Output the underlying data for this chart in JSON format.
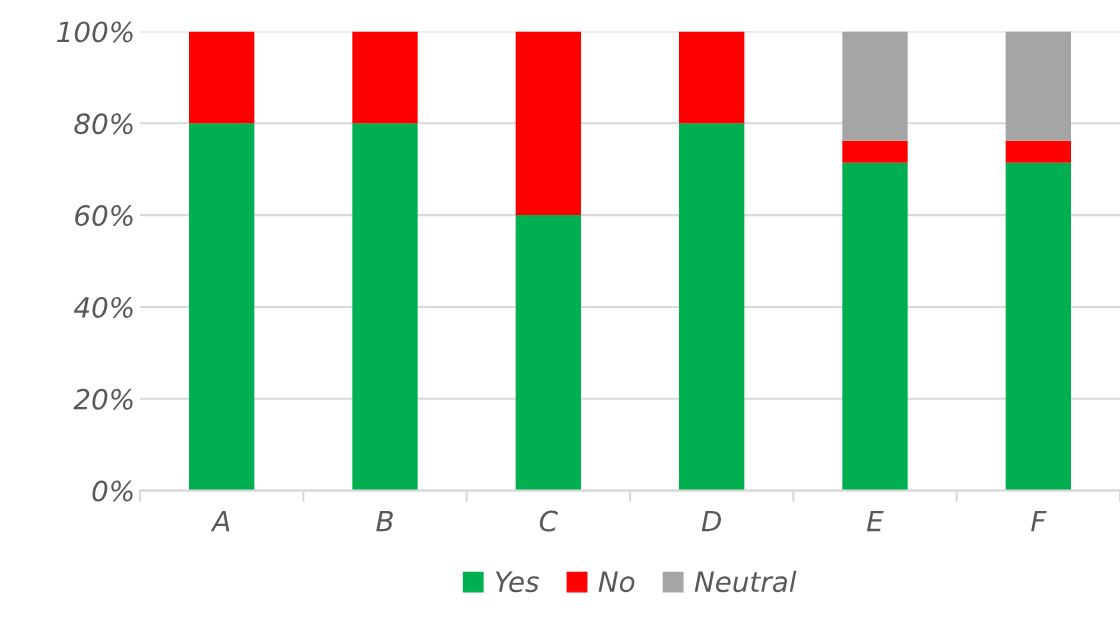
{
  "chart_data": {
    "type": "bar",
    "stacked": true,
    "categories": [
      "A",
      "B",
      "C",
      "D",
      "E",
      "F"
    ],
    "series": [
      {
        "name": "Yes",
        "color": "#00b050",
        "values": [
          80,
          80,
          60,
          80,
          71.4,
          71.4
        ]
      },
      {
        "name": "No",
        "color": "#ff0000",
        "values": [
          20,
          20,
          40,
          20,
          4.8,
          4.8
        ]
      },
      {
        "name": "Neutral",
        "color": "#a5a5a5",
        "values": [
          null,
          null,
          null,
          null,
          23.8,
          23.8
        ]
      }
    ],
    "ylim": [
      0,
      100
    ],
    "yticks": [
      {
        "value": 0,
        "label": "0%"
      },
      {
        "value": 20,
        "label": "20%"
      },
      {
        "value": 40,
        "label": "40%"
      },
      {
        "value": 60,
        "label": "60%"
      },
      {
        "value": 80,
        "label": "80%"
      },
      {
        "value": 100,
        "label": "100%"
      }
    ],
    "grid": "y",
    "legend": "bottom"
  }
}
